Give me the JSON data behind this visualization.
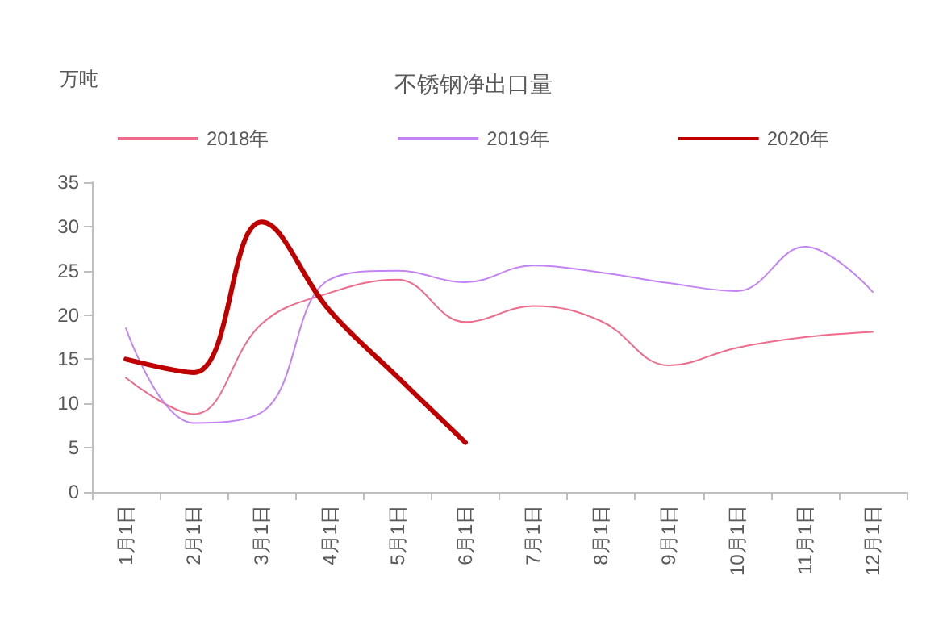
{
  "chart_data": {
    "type": "line",
    "title": "不锈钢净出口量",
    "ylabel": "万吨",
    "categories": [
      "1月1日",
      "2月1日",
      "3月1日",
      "4月1日",
      "5月1日",
      "6月1日",
      "7月1日",
      "8月1日",
      "9月1日",
      "10月1日",
      "11月1日",
      "12月1日"
    ],
    "series": [
      {
        "name": "2018年",
        "color": "#ee6b8b",
        "values": [
          12.9,
          8.8,
          19,
          22.5,
          24,
          19.2,
          21,
          19.3,
          14.3,
          16.3,
          17.5,
          18.1
        ]
      },
      {
        "name": "2019年",
        "color": "#c383f5",
        "values": [
          18.5,
          7.8,
          9,
          24,
          25,
          23.7,
          25.6,
          24.8,
          23.6,
          22.7,
          27.7,
          22.6
        ]
      },
      {
        "name": "2020年",
        "color": "#c00000",
        "values": [
          15,
          13.5,
          30.5,
          20.5,
          13,
          5.6,
          null,
          null,
          null,
          null,
          null,
          null
        ]
      }
    ],
    "ylim": [
      0,
      35
    ],
    "yticks": [
      0,
      5,
      10,
      15,
      20,
      25,
      30,
      35
    ],
    "grid": false,
    "legend": "top",
    "marker": "none",
    "line_style": "solid"
  }
}
